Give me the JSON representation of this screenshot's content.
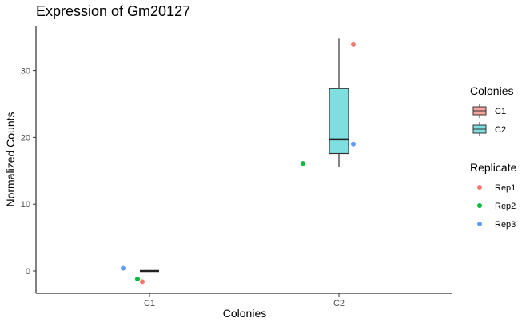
{
  "chart_data": {
    "type": "box",
    "title": "Expression of Gm20127",
    "xlabel": "Colonies",
    "ylabel": "Normalized Counts",
    "categories": [
      "C1",
      "C2"
    ],
    "ylim": [
      -3.5,
      36.5
    ],
    "yticks": [
      0,
      10,
      20,
      30
    ],
    "grid": false,
    "boxes": [
      {
        "category": "C1",
        "min": 0,
        "q1": 0,
        "median": 0,
        "q3": 0,
        "max": 0,
        "fill": "#F8A59E"
      },
      {
        "category": "C2",
        "min": 15.6,
        "q1": 17.6,
        "median": 19.7,
        "q3": 27.3,
        "max": 34.8,
        "fill": "#7FDEE0"
      }
    ],
    "points": [
      {
        "category": "C1",
        "replicate": "Rep1",
        "y": -1.6
      },
      {
        "category": "C1",
        "replicate": "Rep2",
        "y": -1.2
      },
      {
        "category": "C1",
        "replicate": "Rep3",
        "y": 0.4
      },
      {
        "category": "C2",
        "replicate": "Rep1",
        "y": 33.9
      },
      {
        "category": "C2",
        "replicate": "Rep2",
        "y": 16.1
      },
      {
        "category": "C2",
        "replicate": "Rep3",
        "y": 19.0
      }
    ],
    "legends": [
      {
        "title": "Colonies",
        "kind": "box",
        "entries": [
          {
            "label": "C1",
            "color": "#F8A59E"
          },
          {
            "label": "C2",
            "color": "#7FDEE0"
          }
        ]
      },
      {
        "title": "Replicate",
        "kind": "point",
        "entries": [
          {
            "label": "Rep1",
            "color": "#F8766D"
          },
          {
            "label": "Rep2",
            "color": "#00BA38"
          },
          {
            "label": "Rep3",
            "color": "#619CFF"
          }
        ]
      }
    ],
    "legend_position": "right"
  }
}
